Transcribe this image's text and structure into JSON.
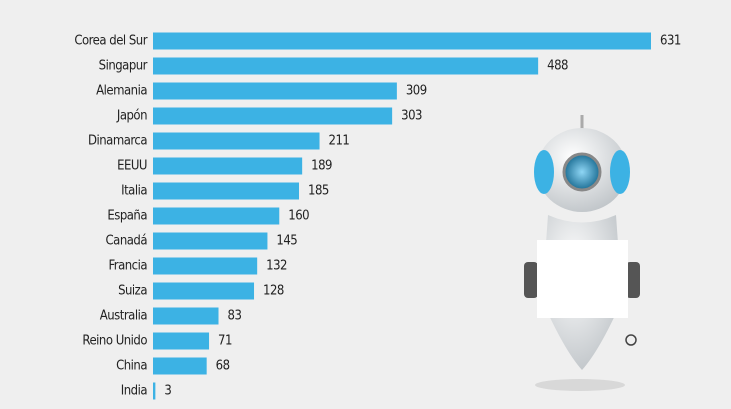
{
  "chart_data": {
    "type": "bar",
    "orientation": "horizontal",
    "categories": [
      "Corea del Sur",
      "Singapur",
      "Alemania",
      "Japón",
      "Dinamarca",
      "EEUU",
      "Italia",
      "España",
      "Canadá",
      "Francia",
      "Suiza",
      "Australia",
      "Reino Unido",
      "China",
      "India"
    ],
    "values": [
      631,
      488,
      309,
      303,
      211,
      189,
      185,
      160,
      145,
      132,
      128,
      83,
      71,
      68,
      3
    ],
    "color": "#3cb2e4"
  }
}
